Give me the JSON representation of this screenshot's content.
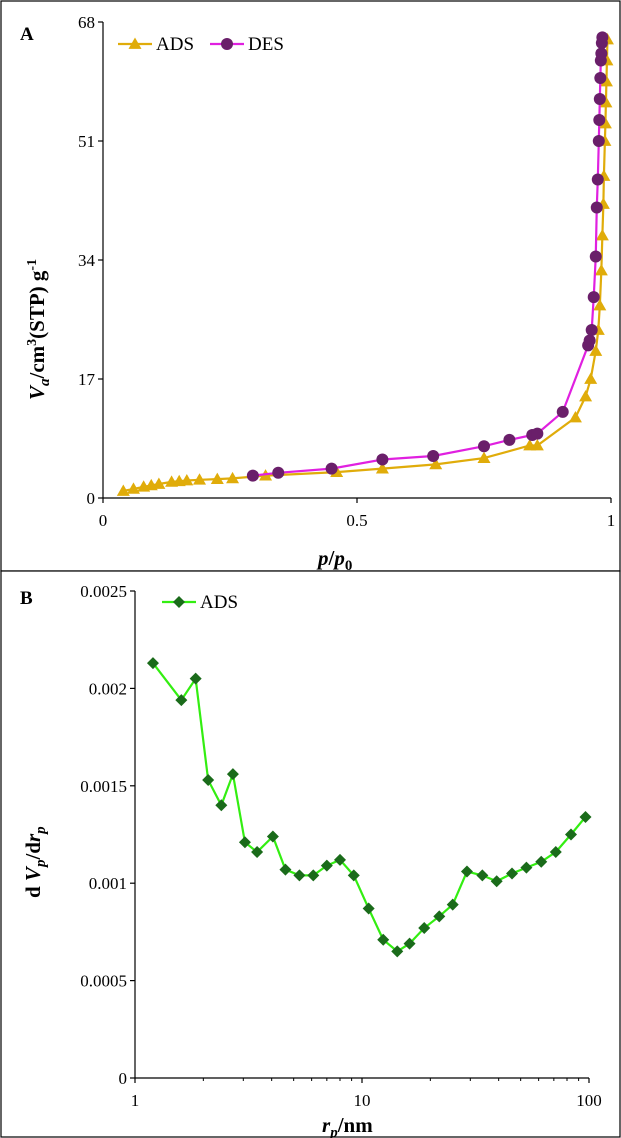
{
  "chart_data": [
    {
      "type": "line",
      "panel_label": "A",
      "x_scale": "linear",
      "xlim": [
        0,
        1
      ],
      "ylim": [
        0,
        68
      ],
      "x_ticks": [
        "0",
        "0.5",
        "1"
      ],
      "y_ticks": [
        "0",
        "17",
        "34",
        "51",
        "68"
      ],
      "legend_position": "top-left",
      "grid": false,
      "series": [
        {
          "name": "ADS",
          "color": "#e0ac0a",
          "marker": "triangle",
          "x": [
            0.04,
            0.06,
            0.08,
            0.095,
            0.11,
            0.135,
            0.15,
            0.165,
            0.19,
            0.225,
            0.255,
            0.32,
            0.46,
            0.55,
            0.655,
            0.75,
            0.84,
            0.855,
            0.93,
            0.95,
            0.96,
            0.97,
            0.975,
            0.978,
            0.981,
            0.983,
            0.985,
            0.986,
            0.988,
            0.989,
            0.99,
            0.991,
            0.992,
            0.993
          ],
          "y": [
            1.0,
            1.3,
            1.6,
            1.8,
            2.0,
            2.3,
            2.4,
            2.5,
            2.6,
            2.7,
            2.8,
            3.2,
            3.7,
            4.2,
            4.8,
            5.7,
            7.5,
            7.5,
            11.5,
            14.5,
            17.0,
            21.0,
            24.0,
            27.5,
            32.5,
            37.5,
            42.0,
            46.0,
            51.0,
            53.5,
            56.5,
            59.5,
            62.5,
            65.5
          ]
        },
        {
          "name": "DES",
          "color": "#e020e0",
          "marker": "circle",
          "marker_color": "#6a1f6a",
          "x": [
            0.295,
            0.345,
            0.45,
            0.55,
            0.65,
            0.75,
            0.8,
            0.845,
            0.855,
            0.905,
            0.955,
            0.958,
            0.962,
            0.966,
            0.97,
            0.972,
            0.974,
            0.976,
            0.977,
            0.978,
            0.979,
            0.98,
            0.981,
            0.982,
            0.983
          ],
          "y": [
            3.2,
            3.6,
            4.2,
            5.5,
            6.0,
            7.4,
            8.3,
            9.0,
            9.2,
            12.3,
            21.8,
            22.5,
            24.0,
            28.7,
            34.5,
            41.5,
            45.5,
            51.0,
            54.0,
            57.0,
            60.0,
            62.5,
            63.5,
            65.0,
            65.8
          ]
        }
      ]
    },
    {
      "type": "line",
      "panel_label": "B",
      "x_scale": "log",
      "xlim": [
        1,
        100
      ],
      "ylim": [
        0,
        0.0025
      ],
      "x_ticks": [
        "1",
        "10",
        "100"
      ],
      "y_ticks": [
        "0",
        "0.0005",
        "0.001",
        "0.0015",
        "0.002",
        "0.0025"
      ],
      "legend_position": "top-left",
      "grid": false,
      "series": [
        {
          "name": "ADS",
          "color": "#33ee11",
          "marker": "diamond",
          "marker_color": "#1a6b1a",
          "x": [
            1.2,
            1.6,
            1.85,
            2.1,
            2.4,
            2.7,
            3.05,
            3.45,
            4.05,
            4.6,
            5.3,
            6.1,
            7.0,
            8.0,
            9.2,
            10.7,
            12.4,
            14.3,
            16.2,
            18.8,
            21.9,
            25.1,
            29.0,
            33.9,
            39.2,
            45.8,
            53.0,
            61.6,
            71.4,
            83.3,
            96.5
          ],
          "y": [
            0.00213,
            0.00194,
            0.00205,
            0.00153,
            0.0014,
            0.00156,
            0.00121,
            0.00116,
            0.00124,
            0.00107,
            0.00104,
            0.00104,
            0.00109,
            0.00112,
            0.00104,
            0.00087,
            0.00071,
            0.00065,
            0.00069,
            0.00077,
            0.00083,
            0.00089,
            0.00106,
            0.00104,
            0.00101,
            0.00105,
            0.00108,
            0.00111,
            0.00116,
            0.00125,
            0.00134
          ]
        }
      ]
    }
  ]
}
